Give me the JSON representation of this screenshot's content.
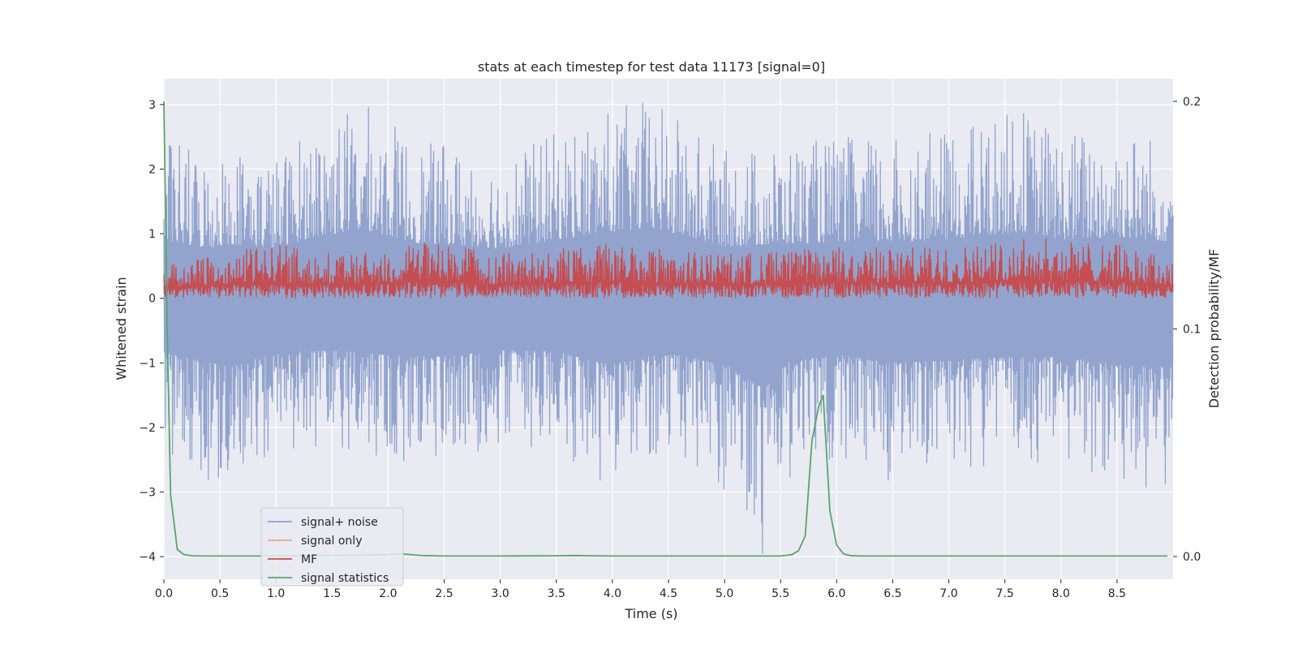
{
  "chart_data": {
    "type": "line",
    "title": "stats at each timestep for test data 11173 [signal=0]",
    "xlabel": "Time (s)",
    "ylabel": "Whitened strain",
    "y2label": "Detection probability/MF",
    "xlim": [
      0.0,
      9.0
    ],
    "ylim": [
      -4.35,
      3.4
    ],
    "y2lim": [
      -0.01,
      0.21
    ],
    "x_ticks": [
      0.0,
      0.5,
      1.0,
      1.5,
      2.0,
      2.5,
      3.0,
      3.5,
      4.0,
      4.5,
      5.0,
      5.5,
      6.0,
      6.5,
      7.0,
      7.5,
      8.0,
      8.5
    ],
    "x_tick_labels": [
      "0.0",
      "0.5",
      "1.0",
      "1.5",
      "2.0",
      "2.5",
      "3.0",
      "3.5",
      "4.0",
      "4.5",
      "5.0",
      "5.5",
      "6.0",
      "6.5",
      "7.0",
      "7.5",
      "8.0",
      "8.5"
    ],
    "y_ticks": [
      -4,
      -3,
      -2,
      -1,
      0,
      1,
      2,
      3
    ],
    "y_tick_labels": [
      "−4",
      "−3",
      "−2",
      "−1",
      "0",
      "1",
      "2",
      "3"
    ],
    "y2_ticks": [
      0.0,
      0.1,
      0.2
    ],
    "y2_tick_labels": [
      "0.0",
      "0.1",
      "0.2"
    ],
    "grid": true,
    "legend_position": "lower-left",
    "series": [
      {
        "name": "signal+ noise",
        "axis": "left",
        "color": "#8da0cb",
        "envelope_upper": [
          [
            0.0,
            2.8
          ],
          [
            0.05,
            2.5
          ],
          [
            0.4,
            2.2
          ],
          [
            0.6,
            2.4
          ],
          [
            1.0,
            2.2
          ],
          [
            1.32,
            2.7
          ],
          [
            1.78,
            3.05
          ],
          [
            2.3,
            2.4
          ],
          [
            2.5,
            2.4
          ],
          [
            3.0,
            2.2
          ],
          [
            3.9,
            2.9
          ],
          [
            4.35,
            3.1
          ],
          [
            5.0,
            2.3
          ],
          [
            5.5,
            2.4
          ],
          [
            6.0,
            2.5
          ],
          [
            6.5,
            2.5
          ],
          [
            7.0,
            2.6
          ],
          [
            7.45,
            2.85
          ],
          [
            7.67,
            2.95
          ],
          [
            8.0,
            2.6
          ],
          [
            8.5,
            2.7
          ],
          [
            9.0,
            2.5
          ]
        ],
        "envelope_lower": [
          [
            0.0,
            -2.3
          ],
          [
            0.05,
            -2.45
          ],
          [
            0.6,
            -3.05
          ],
          [
            1.0,
            -2.4
          ],
          [
            1.5,
            -2.3
          ],
          [
            2.1,
            -2.55
          ],
          [
            2.5,
            -2.55
          ],
          [
            3.0,
            -2.3
          ],
          [
            3.5,
            -2.35
          ],
          [
            3.98,
            -2.95
          ],
          [
            4.5,
            -2.4
          ],
          [
            5.06,
            -3.05
          ],
          [
            5.35,
            -4.0
          ],
          [
            5.55,
            -2.8
          ],
          [
            6.0,
            -2.5
          ],
          [
            6.5,
            -2.85
          ],
          [
            7.0,
            -2.75
          ],
          [
            7.5,
            -2.6
          ],
          [
            8.0,
            -2.6
          ],
          [
            8.5,
            -2.9
          ],
          [
            9.0,
            -3.05
          ]
        ]
      },
      {
        "name": "signal only",
        "axis": "left",
        "color": "#e8a887",
        "values": []
      },
      {
        "name": "MF",
        "axis": "right",
        "color": "#c44e52",
        "baseline": 0.0,
        "envelope_upper": [
          [
            0.0,
            0.5
          ],
          [
            0.5,
            0.7
          ],
          [
            1.0,
            0.85
          ],
          [
            1.5,
            0.7
          ],
          [
            2.0,
            0.75
          ],
          [
            2.35,
            0.9
          ],
          [
            3.0,
            0.7
          ],
          [
            4.0,
            0.85
          ],
          [
            4.5,
            0.75
          ],
          [
            5.0,
            0.7
          ],
          [
            5.5,
            0.75
          ],
          [
            6.0,
            0.8
          ],
          [
            7.0,
            0.8
          ],
          [
            7.7,
            0.95
          ],
          [
            8.5,
            0.85
          ],
          [
            9.0,
            0.6
          ]
        ]
      },
      {
        "name": "signal statistics",
        "axis": "right",
        "color": "#55a868",
        "x": [
          0.0,
          0.03,
          0.06,
          0.12,
          0.18,
          0.25,
          0.35,
          0.5,
          1.0,
          1.5,
          2.0,
          2.1,
          2.2,
          2.3,
          2.5,
          3.0,
          3.5,
          3.65,
          3.8,
          4.0,
          4.5,
          5.0,
          5.5,
          5.6,
          5.66,
          5.72,
          5.78,
          5.84,
          5.88,
          5.94,
          6.0,
          6.06,
          6.12,
          6.2,
          6.5,
          7.0,
          8.0,
          8.95
        ],
        "values": [
          0.2,
          0.1,
          0.027,
          0.003,
          0.0008,
          0.0003,
          0.0002,
          0.0002,
          0.0002,
          0.0005,
          0.0008,
          0.0012,
          0.0008,
          0.0004,
          0.0002,
          0.0002,
          0.0003,
          0.0004,
          0.0003,
          0.0002,
          0.0002,
          0.0002,
          0.0002,
          0.0008,
          0.0025,
          0.009,
          0.051,
          0.066,
          0.071,
          0.02,
          0.005,
          0.0012,
          0.0004,
          0.0002,
          0.0002,
          0.0002,
          0.0002,
          0.0002
        ]
      }
    ]
  }
}
